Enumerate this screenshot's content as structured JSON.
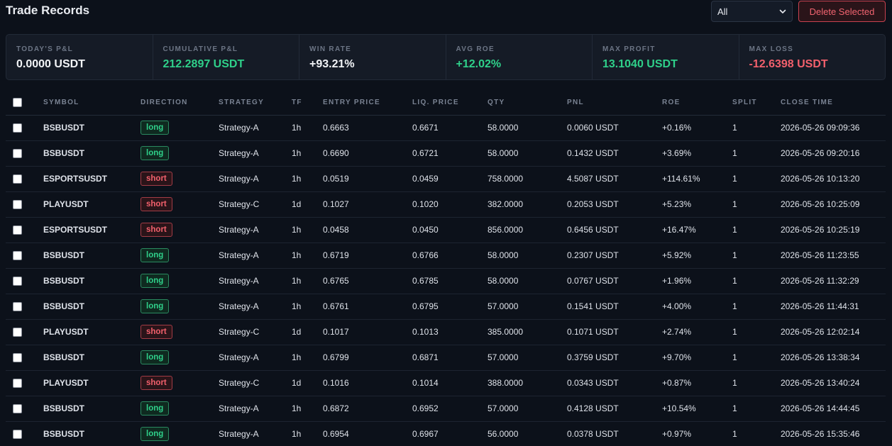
{
  "header": {
    "title": "Trade Records",
    "filter_value": "All",
    "delete_label": "Delete Selected"
  },
  "stats": [
    {
      "label": "TODAY'S P&L",
      "value": "0.0000 USDT",
      "tone": "white"
    },
    {
      "label": "CUMULATIVE P&L",
      "value": "212.2897 USDT",
      "tone": "green"
    },
    {
      "label": "WIN RATE",
      "value": "+93.21%",
      "tone": "white"
    },
    {
      "label": "AVG ROE",
      "value": "+12.02%",
      "tone": "green"
    },
    {
      "label": "MAX PROFIT",
      "value": "13.1040 USDT",
      "tone": "green"
    },
    {
      "label": "MAX LOSS",
      "value": "-12.6398 USDT",
      "tone": "red"
    }
  ],
  "table": {
    "columns": [
      "SYMBOL",
      "DIRECTION",
      "STRATEGY",
      "TF",
      "ENTRY PRICE",
      "LIQ. PRICE",
      "QTY",
      "PNL",
      "ROE",
      "SPLIT",
      "CLOSE TIME"
    ],
    "rows": [
      {
        "symbol": "BSBUSDT",
        "direction": "long",
        "strategy": "Strategy-A",
        "tf": "1h",
        "entry": "0.6663",
        "liq": "0.6671",
        "qty": "58.0000",
        "pnl": "0.0060 USDT",
        "roe": "+0.16%",
        "split": "1",
        "close_time": "2026-05-26 09:09:36"
      },
      {
        "symbol": "BSBUSDT",
        "direction": "long",
        "strategy": "Strategy-A",
        "tf": "1h",
        "entry": "0.6690",
        "liq": "0.6721",
        "qty": "58.0000",
        "pnl": "0.1432 USDT",
        "roe": "+3.69%",
        "split": "1",
        "close_time": "2026-05-26 09:20:16"
      },
      {
        "symbol": "ESPORTSUSDT",
        "direction": "short",
        "strategy": "Strategy-A",
        "tf": "1h",
        "entry": "0.0519",
        "liq": "0.0459",
        "qty": "758.0000",
        "pnl": "4.5087 USDT",
        "roe": "+114.61%",
        "split": "1",
        "close_time": "2026-05-26 10:13:20"
      },
      {
        "symbol": "PLAYUSDT",
        "direction": "short",
        "strategy": "Strategy-C",
        "tf": "1d",
        "entry": "0.1027",
        "liq": "0.1020",
        "qty": "382.0000",
        "pnl": "0.2053 USDT",
        "roe": "+5.23%",
        "split": "1",
        "close_time": "2026-05-26 10:25:09"
      },
      {
        "symbol": "ESPORTSUSDT",
        "direction": "short",
        "strategy": "Strategy-A",
        "tf": "1h",
        "entry": "0.0458",
        "liq": "0.0450",
        "qty": "856.0000",
        "pnl": "0.6456 USDT",
        "roe": "+16.47%",
        "split": "1",
        "close_time": "2026-05-26 10:25:19"
      },
      {
        "symbol": "BSBUSDT",
        "direction": "long",
        "strategy": "Strategy-A",
        "tf": "1h",
        "entry": "0.6719",
        "liq": "0.6766",
        "qty": "58.0000",
        "pnl": "0.2307 USDT",
        "roe": "+5.92%",
        "split": "1",
        "close_time": "2026-05-26 11:23:55"
      },
      {
        "symbol": "BSBUSDT",
        "direction": "long",
        "strategy": "Strategy-A",
        "tf": "1h",
        "entry": "0.6765",
        "liq": "0.6785",
        "qty": "58.0000",
        "pnl": "0.0767 USDT",
        "roe": "+1.96%",
        "split": "1",
        "close_time": "2026-05-26 11:32:29"
      },
      {
        "symbol": "BSBUSDT",
        "direction": "long",
        "strategy": "Strategy-A",
        "tf": "1h",
        "entry": "0.6761",
        "liq": "0.6795",
        "qty": "57.0000",
        "pnl": "0.1541 USDT",
        "roe": "+4.00%",
        "split": "1",
        "close_time": "2026-05-26 11:44:31"
      },
      {
        "symbol": "PLAYUSDT",
        "direction": "short",
        "strategy": "Strategy-C",
        "tf": "1d",
        "entry": "0.1017",
        "liq": "0.1013",
        "qty": "385.0000",
        "pnl": "0.1071 USDT",
        "roe": "+2.74%",
        "split": "1",
        "close_time": "2026-05-26 12:02:14"
      },
      {
        "symbol": "BSBUSDT",
        "direction": "long",
        "strategy": "Strategy-A",
        "tf": "1h",
        "entry": "0.6799",
        "liq": "0.6871",
        "qty": "57.0000",
        "pnl": "0.3759 USDT",
        "roe": "+9.70%",
        "split": "1",
        "close_time": "2026-05-26 13:38:34"
      },
      {
        "symbol": "PLAYUSDT",
        "direction": "short",
        "strategy": "Strategy-C",
        "tf": "1d",
        "entry": "0.1016",
        "liq": "0.1014",
        "qty": "388.0000",
        "pnl": "0.0343 USDT",
        "roe": "+0.87%",
        "split": "1",
        "close_time": "2026-05-26 13:40:24"
      },
      {
        "symbol": "BSBUSDT",
        "direction": "long",
        "strategy": "Strategy-A",
        "tf": "1h",
        "entry": "0.6872",
        "liq": "0.6952",
        "qty": "57.0000",
        "pnl": "0.4128 USDT",
        "roe": "+10.54%",
        "split": "1",
        "close_time": "2026-05-26 14:44:45"
      },
      {
        "symbol": "BSBUSDT",
        "direction": "long",
        "strategy": "Strategy-A",
        "tf": "1h",
        "entry": "0.6954",
        "liq": "0.6967",
        "qty": "56.0000",
        "pnl": "0.0378 USDT",
        "roe": "+0.97%",
        "split": "1",
        "close_time": "2026-05-26 15:35:46"
      }
    ]
  }
}
